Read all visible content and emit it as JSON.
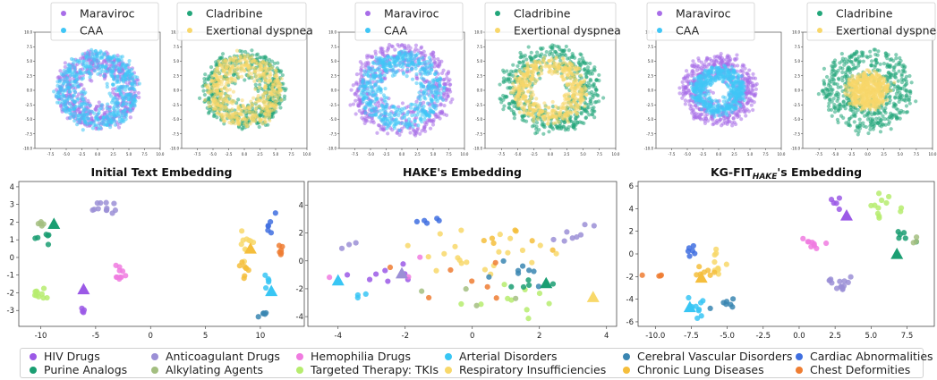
{
  "palette": {
    "HIV Drugs": "#9b59e6",
    "Purine Analogs": "#1a9e72",
    "Anticoagulant Drugs": "#9b8fd6",
    "Alkylating Agents": "#a3be80",
    "Hemophilia Drugs": "#f07be0",
    "Targeted Therapy: TKIs": "#b6ec6e",
    "Arterial Disorders": "#38c6f4",
    "Respiratory Insufficiencies": "#f8d86a",
    "Cerebral Vascular Disorders": "#3a86b2",
    "Chronic Lung Diseases": "#f5be3c",
    "Cardiac Abnormalities": "#3f6fe0",
    "Chest Deformities": "#ef7d32"
  },
  "legend": {
    "items": [
      "HIV Drugs",
      "Purine Analogs",
      "Anticoagulant Drugs",
      "Alkylating Agents",
      "Hemophilia Drugs",
      "Targeted Therapy: TKIs",
      "Arterial Disorders",
      "Respiratory Insufficiencies",
      "Cerebral Vascular Disorders",
      "Chronic Lung Diseases",
      "Cardiac Abnormalities",
      "Chest Deformities"
    ]
  },
  "chart_data": [
    {
      "type": "scatter",
      "group": "ring",
      "panel": 1,
      "series": [
        {
          "name": "Maraviroc",
          "color": "#a86de8",
          "inner_r": 2.0,
          "outer_r": 6.5
        },
        {
          "name": "CAA",
          "color": "#3fc6f6",
          "inner_r": 2.0,
          "outer_r": 6.5
        }
      ],
      "xlim": [
        -10,
        10
      ],
      "ylim": [
        -10,
        10
      ],
      "xticks": [
        "-7.5",
        "-5.0",
        "-2.5",
        "0.0",
        "2.5",
        "5.0",
        "7.5",
        "10.0"
      ],
      "yticks": [
        "10.0",
        "7.5",
        "5.0",
        "2.5",
        "0.0",
        "-2.5",
        "-5.0",
        "-7.5",
        "-10.0"
      ]
    },
    {
      "type": "scatter",
      "group": "ring",
      "panel": 2,
      "series": [
        {
          "name": "Cladribine",
          "color": "#22a67a",
          "inner_r": 2.0,
          "outer_r": 6.5
        },
        {
          "name": "Exertional dyspnea",
          "color": "#f8d76a",
          "inner_r": 2.0,
          "outer_r": 6.0
        }
      ],
      "xlim": [
        -10,
        10
      ],
      "ylim": [
        -10,
        10
      ],
      "xticks": [
        "-7.5",
        "-5.0",
        "-2.5",
        "0.0",
        "2.5",
        "5.0",
        "7.5",
        "10.0"
      ],
      "yticks": [
        "10.0",
        "7.5",
        "5.0",
        "2.5",
        "0.0",
        "-2.5",
        "-5.0",
        "-7.5",
        "-10.0"
      ]
    },
    {
      "type": "scatter",
      "group": "ring",
      "panel": 3,
      "series": [
        {
          "name": "Maraviroc",
          "color": "#a86de8",
          "inner_r": 2.5,
          "outer_r": 8.0
        },
        {
          "name": "CAA",
          "color": "#3fc6f6",
          "inner_r": 2.5,
          "outer_r": 6.5
        }
      ],
      "xlim": [
        -10,
        10
      ],
      "ylim": [
        -10,
        10
      ],
      "xticks": [
        "-7.5",
        "-5.0",
        "-2.5",
        "0.0",
        "2.5",
        "5.0",
        "7.5",
        "10.0"
      ],
      "yticks": [
        "10.0",
        "7.5",
        "5.0",
        "2.5",
        "0.0",
        "-2.5",
        "-5.0",
        "-7.5",
        "-10.0"
      ]
    },
    {
      "type": "scatter",
      "group": "ring",
      "panel": 4,
      "series": [
        {
          "name": "Cladribine",
          "color": "#22a67a",
          "inner_r": 2.5,
          "outer_r": 7.5
        },
        {
          "name": "Exertional dyspnea",
          "color": "#f8d76a",
          "inner_r": 2.5,
          "outer_r": 5.5
        }
      ],
      "xlim": [
        -10,
        10
      ],
      "ylim": [
        -10,
        10
      ],
      "xticks": [
        "-7.5",
        "-5.0",
        "-2.5",
        "0.0",
        "2.5",
        "5.0",
        "7.5",
        "10.0"
      ],
      "yticks": [
        "10.0",
        "7.5",
        "5.0",
        "2.5",
        "0.0",
        "-2.5",
        "-5.0",
        "-7.5",
        "-10.0"
      ]
    },
    {
      "type": "scatter",
      "group": "ring",
      "panel": 5,
      "series": [
        {
          "name": "Maraviroc",
          "color": "#a86de8",
          "inner_r": 1.5,
          "outer_r": 6.0
        },
        {
          "name": "CAA",
          "color": "#3fc6f6",
          "inner_r": 1.5,
          "outer_r": 4.0
        }
      ],
      "xlim": [
        -10,
        10
      ],
      "ylim": [
        -10,
        10
      ],
      "xticks": [
        "-7.5",
        "-5.0",
        "-2.5",
        "0.0",
        "2.5",
        "5.0",
        "7.5",
        "10.0"
      ],
      "yticks": [
        "10.0",
        "7.5",
        "5.0",
        "2.5",
        "0.0",
        "-2.5",
        "-5.0",
        "-7.5",
        "-10.0"
      ]
    },
    {
      "type": "scatter",
      "group": "ring",
      "panel": 6,
      "series": [
        {
          "name": "Cladribine",
          "color": "#22a67a",
          "inner_r": 1.5,
          "outer_r": 7.0
        },
        {
          "name": "Exertional dyspnea",
          "color": "#f8d76a",
          "inner_r": 0.0,
          "outer_r": 3.0
        }
      ],
      "xlim": [
        -10,
        10
      ],
      "ylim": [
        -10,
        10
      ],
      "xticks": [
        "-7.5",
        "-5.0",
        "-2.5",
        "0.0",
        "2.5",
        "5.0",
        "7.5",
        "10.0"
      ],
      "yticks": [
        "10.0",
        "7.5",
        "5.0",
        "2.5",
        "0.0",
        "-2.5",
        "-5.0",
        "-7.5",
        "-10.0"
      ]
    },
    {
      "type": "scatter",
      "group": "embed",
      "panel": 1,
      "title": "Initial Text Embedding",
      "xlim": [
        -12,
        14
      ],
      "ylim": [
        -3.9,
        4.3
      ],
      "xticks": [
        -10,
        -5,
        0,
        5,
        10
      ],
      "yticks": [
        -3,
        -2,
        -1,
        0,
        1,
        2,
        3,
        4
      ],
      "clusters": [
        {
          "cat": "Anticoagulant Drugs",
          "cx": -4.5,
          "cy": 2.8,
          "sx": 1.1,
          "sy": 0.5,
          "n": 12
        },
        {
          "cat": "Alkylating Agents",
          "cx": -9.8,
          "cy": 2.0,
          "sx": 0.5,
          "sy": 0.35,
          "n": 5
        },
        {
          "cat": "Purine Analogs",
          "cx": -9.4,
          "cy": 1.1,
          "sx": 0.8,
          "sy": 0.35,
          "n": 6
        },
        {
          "cat": "Targeted Therapy: TKIs",
          "cx": -10.0,
          "cy": -2.0,
          "sx": 0.6,
          "sy": 0.35,
          "n": 10
        },
        {
          "cat": "Hemophilia Drugs",
          "cx": -2.8,
          "cy": -1.0,
          "sx": 0.5,
          "sy": 0.4,
          "n": 10
        },
        {
          "cat": "HIV Drugs",
          "cx": -6.0,
          "cy": -3.0,
          "sx": 0.3,
          "sy": 0.15,
          "n": 4
        },
        {
          "cat": "Respiratory Insufficiencies",
          "cx": 8.8,
          "cy": 1.0,
          "sx": 0.5,
          "sy": 0.8,
          "n": 10
        },
        {
          "cat": "Chronic Lung Diseases",
          "cx": 8.5,
          "cy": -0.7,
          "sx": 0.6,
          "sy": 0.5,
          "n": 8
        },
        {
          "cat": "Cardiac Abnormalities",
          "cx": 10.8,
          "cy": 1.8,
          "sx": 0.5,
          "sy": 0.5,
          "n": 6
        },
        {
          "cat": "Chest Deformities",
          "cx": 12.0,
          "cy": 0.3,
          "sx": 0.3,
          "sy": 0.4,
          "n": 6
        },
        {
          "cat": "Arterial Disorders",
          "cx": 10.5,
          "cy": -1.2,
          "sx": 0.3,
          "sy": 0.4,
          "n": 5
        },
        {
          "cat": "Cerebral Vascular Disorders",
          "cx": 10.2,
          "cy": -3.2,
          "sx": 0.3,
          "sy": 0.2,
          "n": 5
        }
      ],
      "triangles": [
        {
          "cat": "Purine Analogs",
          "x": -8.8,
          "y": 1.9
        },
        {
          "cat": "HIV Drugs",
          "x": -6.1,
          "y": -1.8
        },
        {
          "cat": "Chronic Lung Diseases",
          "x": 9.1,
          "y": 0.5
        },
        {
          "cat": "Arterial Disorders",
          "x": 11.0,
          "y": -1.9
        }
      ]
    },
    {
      "type": "scatter",
      "group": "embed",
      "panel": 2,
      "title": "HAKE's Embedding",
      "xlim": [
        -4.9,
        4.3
      ],
      "ylim": [
        -4.7,
        5.7
      ],
      "xticks": [
        -4,
        -2,
        0,
        2,
        4
      ],
      "yticks": [
        -4,
        -2,
        0,
        2,
        4
      ],
      "clusters": [
        {
          "cat": "HIV Drugs",
          "cx": -2.6,
          "cy": -0.5,
          "sx": 0.8,
          "sy": 1.2,
          "n": 8
        },
        {
          "cat": "Anticoagulant Drugs",
          "cx": 3.0,
          "cy": 2.0,
          "sx": 0.8,
          "sy": 0.6,
          "n": 8
        },
        {
          "cat": "Anticoagulant Drugs",
          "cx": -3.8,
          "cy": 1.0,
          "sx": 0.4,
          "sy": 0.6,
          "n": 3
        },
        {
          "cat": "Respiratory Insufficiencies",
          "cx": 0.5,
          "cy": 0.5,
          "sx": 1.8,
          "sy": 1.6,
          "n": 22
        },
        {
          "cat": "Targeted Therapy: TKIs",
          "cx": 1.3,
          "cy": -2.5,
          "sx": 1.0,
          "sy": 1.5,
          "n": 10
        },
        {
          "cat": "Cerebral Vascular Disorders",
          "cx": 1.0,
          "cy": -1.2,
          "sx": 1.0,
          "sy": 0.8,
          "n": 8
        },
        {
          "cat": "Purine Analogs",
          "cx": 1.8,
          "cy": -1.5,
          "sx": 0.8,
          "sy": 0.5,
          "n": 5
        },
        {
          "cat": "Cardiac Abnormalities",
          "cx": -1.3,
          "cy": 3.0,
          "sx": 0.3,
          "sy": 0.8,
          "n": 5
        },
        {
          "cat": "Chest Deformities",
          "cx": -0.5,
          "cy": -1.5,
          "sx": 1.4,
          "sy": 2.0,
          "n": 7
        },
        {
          "cat": "Chronic Lung Diseases",
          "cx": 1.5,
          "cy": 2.0,
          "sx": 1.2,
          "sy": 1.2,
          "n": 7
        },
        {
          "cat": "Hemophilia Drugs",
          "cx": -2.0,
          "cy": -2.0,
          "sx": 1.5,
          "sy": 2.0,
          "n": 3
        },
        {
          "cat": "Alkylating Agents",
          "cx": -0.5,
          "cy": -2.0,
          "sx": 1.5,
          "sy": 1.5,
          "n": 4
        },
        {
          "cat": "Arterial Disorders",
          "cx": -3.3,
          "cy": -2.5,
          "sx": 0.5,
          "sy": 0.5,
          "n": 3
        }
      ],
      "triangles": [
        {
          "cat": "Arterial Disorders",
          "x": -4.0,
          "y": -1.4
        },
        {
          "cat": "Anticoagulant Drugs",
          "x": -2.1,
          "y": -0.9
        },
        {
          "cat": "Purine Analogs",
          "x": 2.2,
          "y": -1.6
        },
        {
          "cat": "Respiratory Insufficiencies",
          "x": 3.6,
          "y": -2.6
        }
      ]
    },
    {
      "type": "scatter",
      "group": "embed",
      "panel": 3,
      "title": "KG-FIT",
      "title_sub": "HAKE",
      "title_tail": "'s Embedding",
      "xlim": [
        -11.2,
        9.4
      ],
      "ylim": [
        -6.4,
        6.4
      ],
      "xticks": [
        "-10.0",
        "-7.5",
        "-5.0",
        "-2.5",
        "0.0",
        "2.5",
        "5.0",
        "7.5"
      ],
      "xtick_vals": [
        -10,
        -7.5,
        -5,
        -2.5,
        0,
        2.5,
        5,
        7.5
      ],
      "yticks": [
        -6,
        -4,
        -2,
        0,
        2,
        4,
        6
      ],
      "clusters": [
        {
          "cat": "Hemophilia Drugs",
          "cx": 1.0,
          "cy": 1.0,
          "sx": 0.8,
          "sy": 0.4,
          "n": 9
        },
        {
          "cat": "HIV Drugs",
          "cx": 2.6,
          "cy": 4.3,
          "sx": 0.4,
          "sy": 0.5,
          "n": 5
        },
        {
          "cat": "Anticoagulant Drugs",
          "cx": 3.0,
          "cy": -2.5,
          "sx": 0.9,
          "sy": 0.7,
          "n": 14
        },
        {
          "cat": "Targeted Therapy: TKIs",
          "cx": 6.0,
          "cy": 4.0,
          "sx": 1.0,
          "sy": 1.0,
          "n": 12
        },
        {
          "cat": "Purine Analogs",
          "cx": 7.3,
          "cy": 1.7,
          "sx": 0.6,
          "sy": 0.6,
          "n": 6
        },
        {
          "cat": "Alkylating Agents",
          "cx": 8.2,
          "cy": 1.2,
          "sx": 0.3,
          "sy": 0.3,
          "n": 3
        },
        {
          "cat": "Respiratory Insufficiencies",
          "cx": -5.8,
          "cy": -0.8,
          "sx": 0.9,
          "sy": 1.0,
          "n": 10
        },
        {
          "cat": "Chronic Lung Diseases",
          "cx": -6.5,
          "cy": -1.8,
          "sx": 0.8,
          "sy": 0.6,
          "n": 7
        },
        {
          "cat": "Cardiac Abnormalities",
          "cx": -7.5,
          "cy": 0.5,
          "sx": 0.4,
          "sy": 0.7,
          "n": 6
        },
        {
          "cat": "Chest Deformities",
          "cx": -9.5,
          "cy": -1.9,
          "sx": 0.8,
          "sy": 0.2,
          "n": 4
        },
        {
          "cat": "Arterial Disorders",
          "cx": -6.8,
          "cy": -4.8,
          "sx": 1.0,
          "sy": 0.8,
          "n": 9
        },
        {
          "cat": "Cerebral Vascular Disorders",
          "cx": -5.0,
          "cy": -4.3,
          "sx": 0.9,
          "sy": 0.5,
          "n": 7
        }
      ],
      "triangles": [
        {
          "cat": "HIV Drugs",
          "x": 3.3,
          "y": 3.4
        },
        {
          "cat": "Purine Analogs",
          "x": 6.8,
          "y": 0.0
        },
        {
          "cat": "Chronic Lung Diseases",
          "x": -6.8,
          "y": -2.1
        },
        {
          "cat": "Arterial Disorders",
          "x": -7.6,
          "y": -4.7
        }
      ]
    }
  ]
}
